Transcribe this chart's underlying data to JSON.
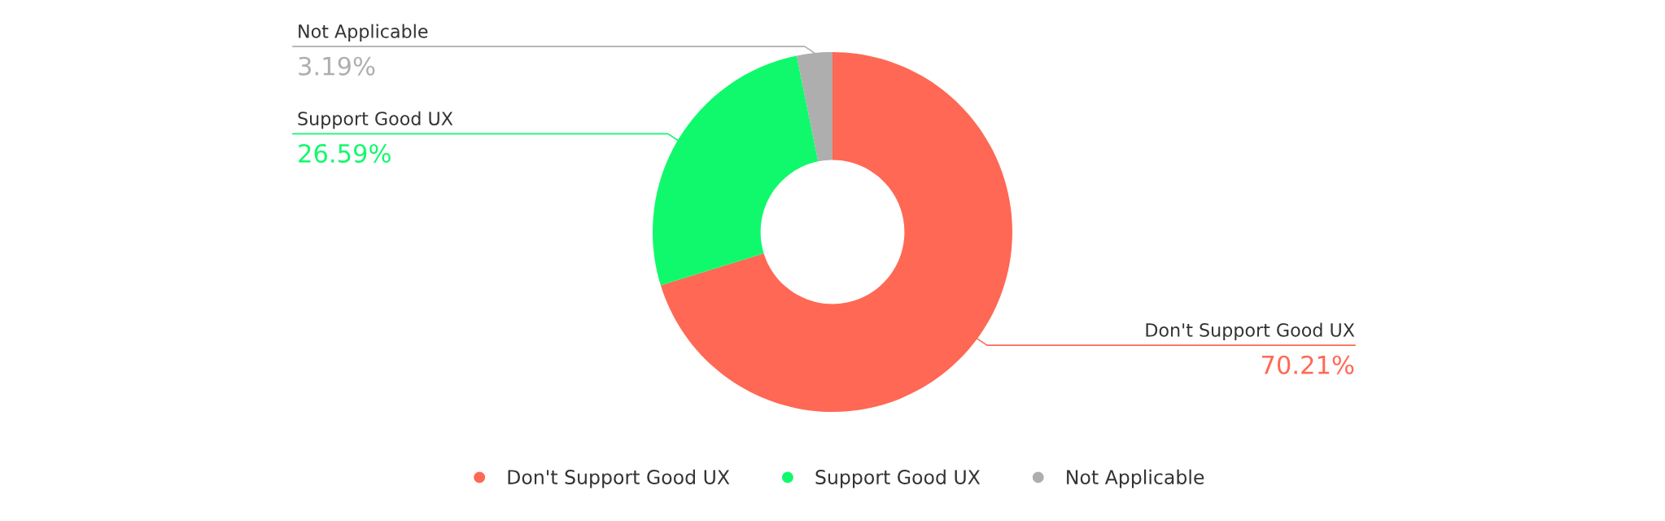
{
  "chart_data": {
    "type": "donut",
    "categories": [
      "Don't Support Good UX",
      "Support Good UX",
      "Not Applicable"
    ],
    "values": [
      70.21,
      26.59,
      3.19
    ],
    "colors": [
      "#ff6854",
      "#10f96c",
      "#aeaeae"
    ],
    "value_labels": [
      "70.21%",
      "26.59%",
      "3.19%"
    ],
    "legend": "bottom"
  }
}
